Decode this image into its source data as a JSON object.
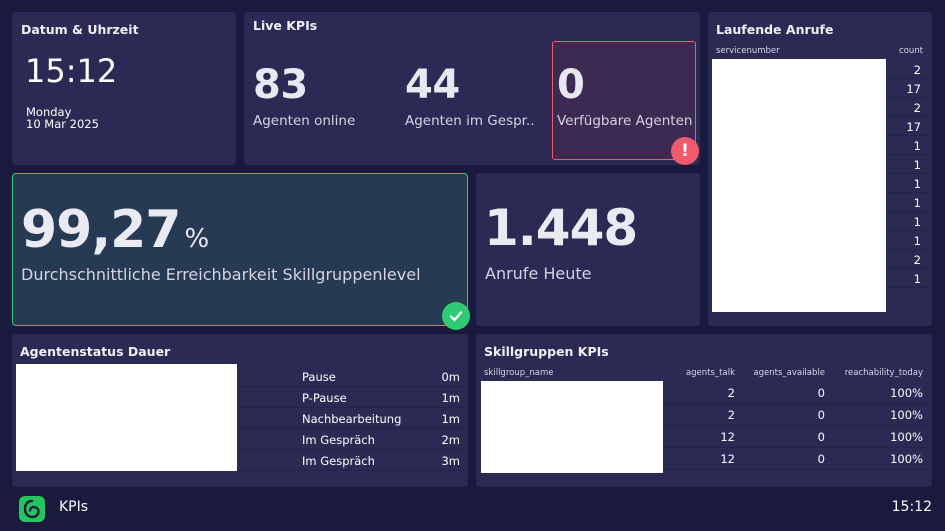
{
  "datetime": {
    "title": "Datum & Uhrzeit",
    "time": "15:12",
    "day": "Monday",
    "date": "10 Mar 2025"
  },
  "live_kpis": {
    "title": "Live KPIs",
    "agents_online": {
      "value": "83",
      "label": "Agenten online"
    },
    "agents_in_call": {
      "value": "44",
      "label": "Agenten im Gespr..."
    },
    "agents_available": {
      "value": "0",
      "label": "Verfügbare Agenten",
      "alert_icon": "exclamation-icon"
    }
  },
  "reachability": {
    "value": "99,27",
    "unit": "%",
    "label": "Durchschnittliche Erreichbarkeit Skillgruppenlevel",
    "status_icon": "checkmark-icon"
  },
  "calls_today": {
    "value": "1.448",
    "label": "Anrufe Heute"
  },
  "running_calls": {
    "title": "Laufende Anrufe",
    "col_servicenumber": "servicenumber",
    "col_count": "count",
    "rows": [
      "2",
      "17",
      "2",
      "17",
      "1",
      "1",
      "1",
      "1",
      "1",
      "1",
      "2",
      "1"
    ]
  },
  "agent_status": {
    "title": "Agentenstatus Dauer",
    "rows": [
      {
        "status": "Pause",
        "duration": "0m"
      },
      {
        "status": "P-Pause",
        "duration": "1m"
      },
      {
        "status": "Nachbearbeitung",
        "duration": "1m"
      },
      {
        "status": "Im Gespräch",
        "duration": "2m"
      },
      {
        "status": "Im Gespräch",
        "duration": "3m"
      }
    ]
  },
  "skillgroups": {
    "title": "Skillgruppen KPIs",
    "columns": [
      "skillgroup_name",
      "agents_talk",
      "agents_available",
      "reachability_today"
    ],
    "rows": [
      {
        "talk": "2",
        "available": "0",
        "reach": "100%"
      },
      {
        "talk": "2",
        "available": "0",
        "reach": "100%"
      },
      {
        "talk": "12",
        "available": "0",
        "reach": "100%"
      },
      {
        "talk": "12",
        "available": "0",
        "reach": "100%"
      }
    ]
  },
  "footer": {
    "logo_icon": "app-logo-icon",
    "title": "KPIs",
    "clock": "15:12"
  },
  "colors": {
    "background": "#1a1a3f",
    "card": "#2a2a55",
    "success": "#2ecc71",
    "alert": "#f05a6a",
    "logo": "#22c55e"
  }
}
